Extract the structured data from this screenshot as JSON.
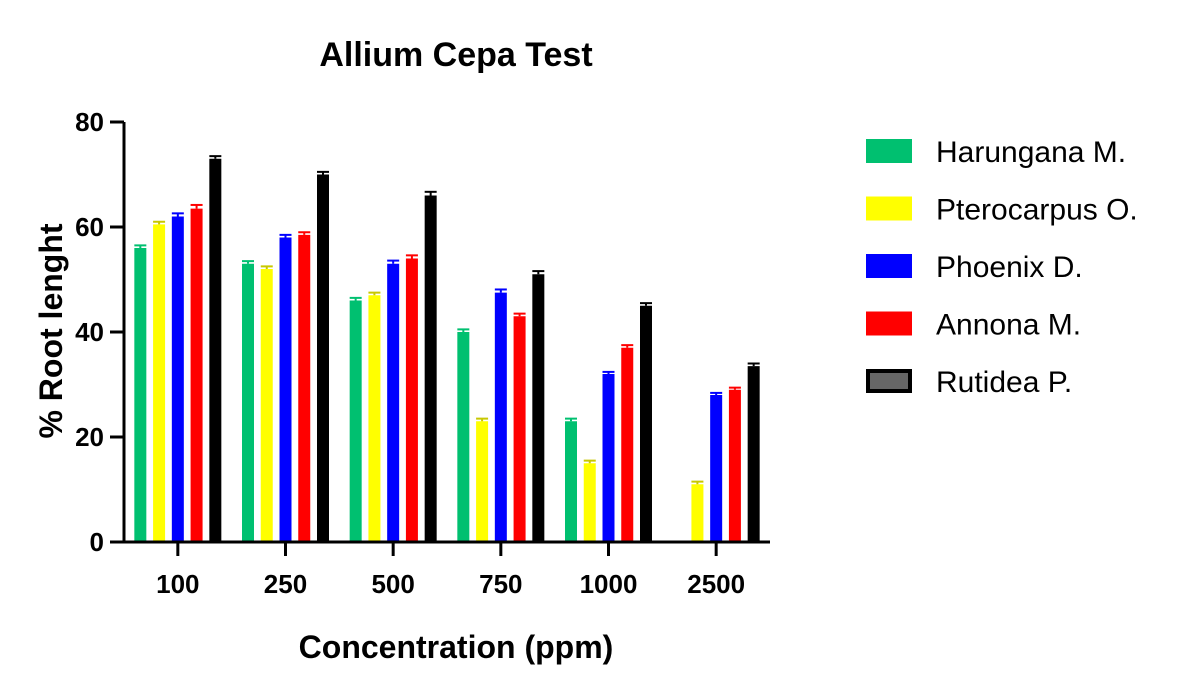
{
  "chart_data": {
    "type": "bar",
    "title": "Allium Cepa Test",
    "xlabel": "Concentration (ppm)",
    "ylabel": "% Root lenght",
    "ylim": [
      0,
      80
    ],
    "yticks": [
      0,
      20,
      40,
      60,
      80
    ],
    "categories": [
      "100",
      "250",
      "500",
      "750",
      "1000",
      "2500"
    ],
    "legend_position": "right",
    "series": [
      {
        "name": "Harungana M.",
        "color": "#00c070",
        "values": [
          56,
          53,
          46,
          40,
          23,
          0
        ],
        "errors": [
          0.5,
          0.5,
          0.5,
          0.5,
          0.5,
          0
        ]
      },
      {
        "name": "Pterocarpus O.",
        "color": "#ffff00",
        "values": [
          60.5,
          52,
          47,
          23,
          15,
          11
        ],
        "errors": [
          0.5,
          0.5,
          0.5,
          0.5,
          0.5,
          0.5
        ]
      },
      {
        "name": "Phoenix D.",
        "color": "#0000ff",
        "values": [
          62,
          58,
          53,
          47.5,
          32,
          28
        ],
        "errors": [
          0.6,
          0.5,
          0.6,
          0.6,
          0.4,
          0.4
        ]
      },
      {
        "name": "Annona M.",
        "color": "#ff0000",
        "values": [
          63.5,
          58.5,
          54,
          43,
          37,
          29
        ],
        "errors": [
          0.7,
          0.5,
          0.6,
          0.5,
          0.5,
          0.4
        ]
      },
      {
        "name": "Rutidea P.",
        "color": "#000000",
        "fill_legend": "#666666",
        "values": [
          73,
          70,
          66,
          51,
          45,
          33.5
        ],
        "errors": [
          0.5,
          0.5,
          0.7,
          0.6,
          0.5,
          0.5
        ]
      }
    ]
  }
}
